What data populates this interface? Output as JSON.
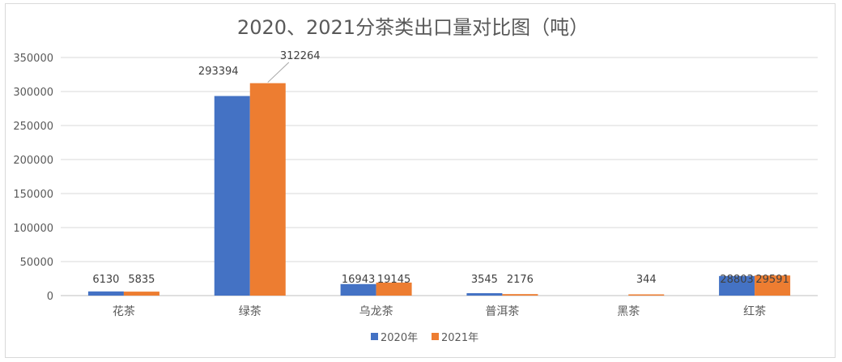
{
  "chart_data": {
    "type": "bar",
    "title": "2020、2021分茶类出口量对比图（吨）",
    "categories": [
      "花茶",
      "绿茶",
      "乌龙茶",
      "普洱茶",
      "黑茶",
      "红茶"
    ],
    "series": [
      {
        "name": "2020年",
        "color": "#4472c4",
        "values": [
          6130,
          293394,
          16943,
          3545,
          0,
          28803
        ],
        "labels": [
          "6130",
          "293394",
          "16943",
          "3545",
          "",
          "28803"
        ]
      },
      {
        "name": "2021年",
        "color": "#ed7d31",
        "values": [
          5835,
          312264,
          19145,
          2176,
          344,
          29591
        ],
        "labels": [
          "5835",
          "312264",
          "19145",
          "2176",
          "344",
          "29591"
        ]
      }
    ],
    "ylim": [
      0,
      350000
    ],
    "yticks": [
      "0",
      "50000",
      "100000",
      "150000",
      "200000",
      "250000",
      "300000",
      "350000"
    ],
    "grid": true,
    "legend_position": "bottom"
  }
}
